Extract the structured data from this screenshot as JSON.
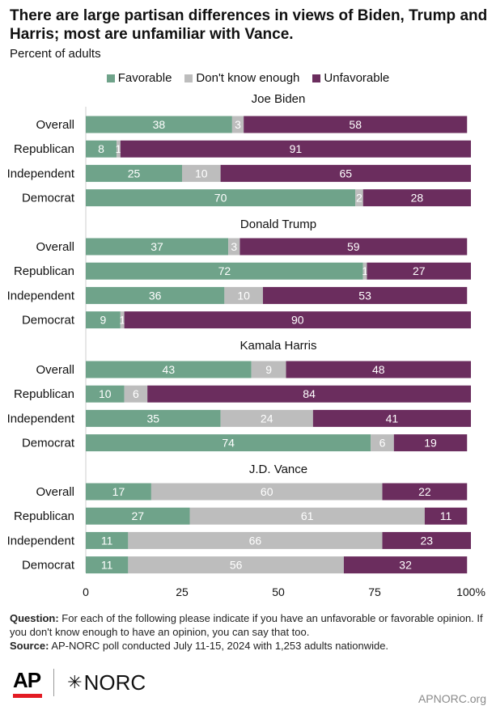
{
  "title": "There are large partisan differences in views of Biden, Trump and Harris; most are unfamiliar with Vance.",
  "subtitle": "Percent of adults",
  "legend": [
    {
      "label": "Favorable",
      "color": "#6fa38a"
    },
    {
      "label": "Don't know enough",
      "color": "#bdbdbd"
    },
    {
      "label": "Unfavorable",
      "color": "#6b2d5e"
    }
  ],
  "footnote": {
    "question_label": "Question:",
    "question_text": "For each of the following please indicate if you have an unfavorable or favorable opinion. If you don't know enough to have an opinion, you can say that too.",
    "source_label": "Source:",
    "source_text": "AP-NORC poll conducted July 11-15, 2024 with 1,253 adults nationwide."
  },
  "logos": {
    "ap": "AP",
    "norc": "NORC",
    "norc_icon": "asterisk-icon"
  },
  "site": "APNORC.org",
  "chart_data": {
    "type": "bar",
    "orientation": "horizontal",
    "stacked": true,
    "xlim": [
      0,
      100
    ],
    "x_ticks": [
      "0",
      "25",
      "50",
      "75",
      "100%"
    ],
    "series_names": [
      "Favorable",
      "Don't know enough",
      "Unfavorable"
    ],
    "colors": [
      "#6fa38a",
      "#bdbdbd",
      "#6b2d5e"
    ],
    "groups": [
      {
        "name": "Joe Biden",
        "rows": [
          {
            "label": "Overall",
            "values": [
              38,
              3,
              58
            ]
          },
          {
            "label": "Republican",
            "values": [
              8,
              1,
              91
            ]
          },
          {
            "label": "Independent",
            "values": [
              25,
              10,
              65
            ]
          },
          {
            "label": "Democrat",
            "values": [
              70,
              2,
              28
            ]
          }
        ]
      },
      {
        "name": "Donald Trump",
        "rows": [
          {
            "label": "Overall",
            "values": [
              37,
              3,
              59
            ]
          },
          {
            "label": "Republican",
            "values": [
              72,
              1,
              27
            ]
          },
          {
            "label": "Independent",
            "values": [
              36,
              10,
              53
            ]
          },
          {
            "label": "Democrat",
            "values": [
              9,
              1,
              90
            ]
          }
        ]
      },
      {
        "name": "Kamala Harris",
        "rows": [
          {
            "label": "Overall",
            "values": [
              43,
              9,
              48
            ]
          },
          {
            "label": "Republican",
            "values": [
              10,
              6,
              84
            ]
          },
          {
            "label": "Independent",
            "values": [
              35,
              24,
              41
            ]
          },
          {
            "label": "Democrat",
            "values": [
              74,
              6,
              19
            ]
          }
        ]
      },
      {
        "name": "J.D. Vance",
        "rows": [
          {
            "label": "Overall",
            "values": [
              17,
              60,
              22
            ]
          },
          {
            "label": "Republican",
            "values": [
              27,
              61,
              11
            ]
          },
          {
            "label": "Independent",
            "values": [
              11,
              66,
              23
            ]
          },
          {
            "label": "Democrat",
            "values": [
              11,
              56,
              32
            ]
          }
        ]
      }
    ]
  }
}
